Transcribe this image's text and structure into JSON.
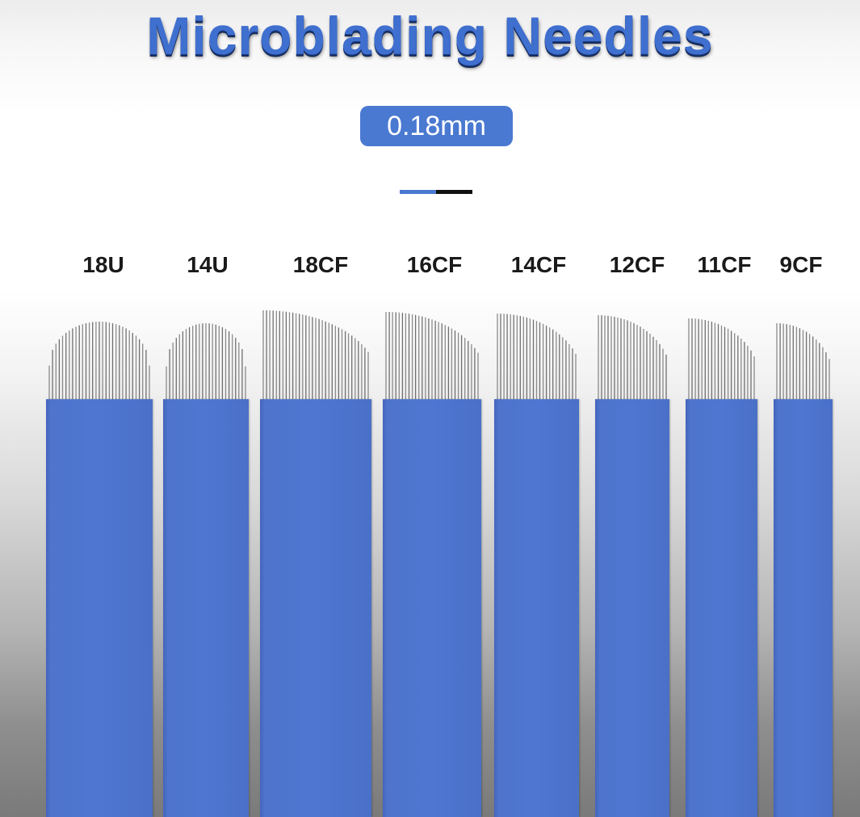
{
  "title": "Microblading Needles",
  "badge": "0.18mm",
  "colors": {
    "blade": "#4f77d1",
    "title": "#3f6fcf",
    "badge": "#4a79d1",
    "pin": "#8a8a8a"
  },
  "needles": [
    {
      "label": "18U"
    },
    {
      "label": "14U"
    },
    {
      "label": "18CF"
    },
    {
      "label": "16CF"
    },
    {
      "label": "14CF"
    },
    {
      "label": "12CF"
    },
    {
      "label": "11CF"
    },
    {
      "label": "9CF"
    }
  ]
}
